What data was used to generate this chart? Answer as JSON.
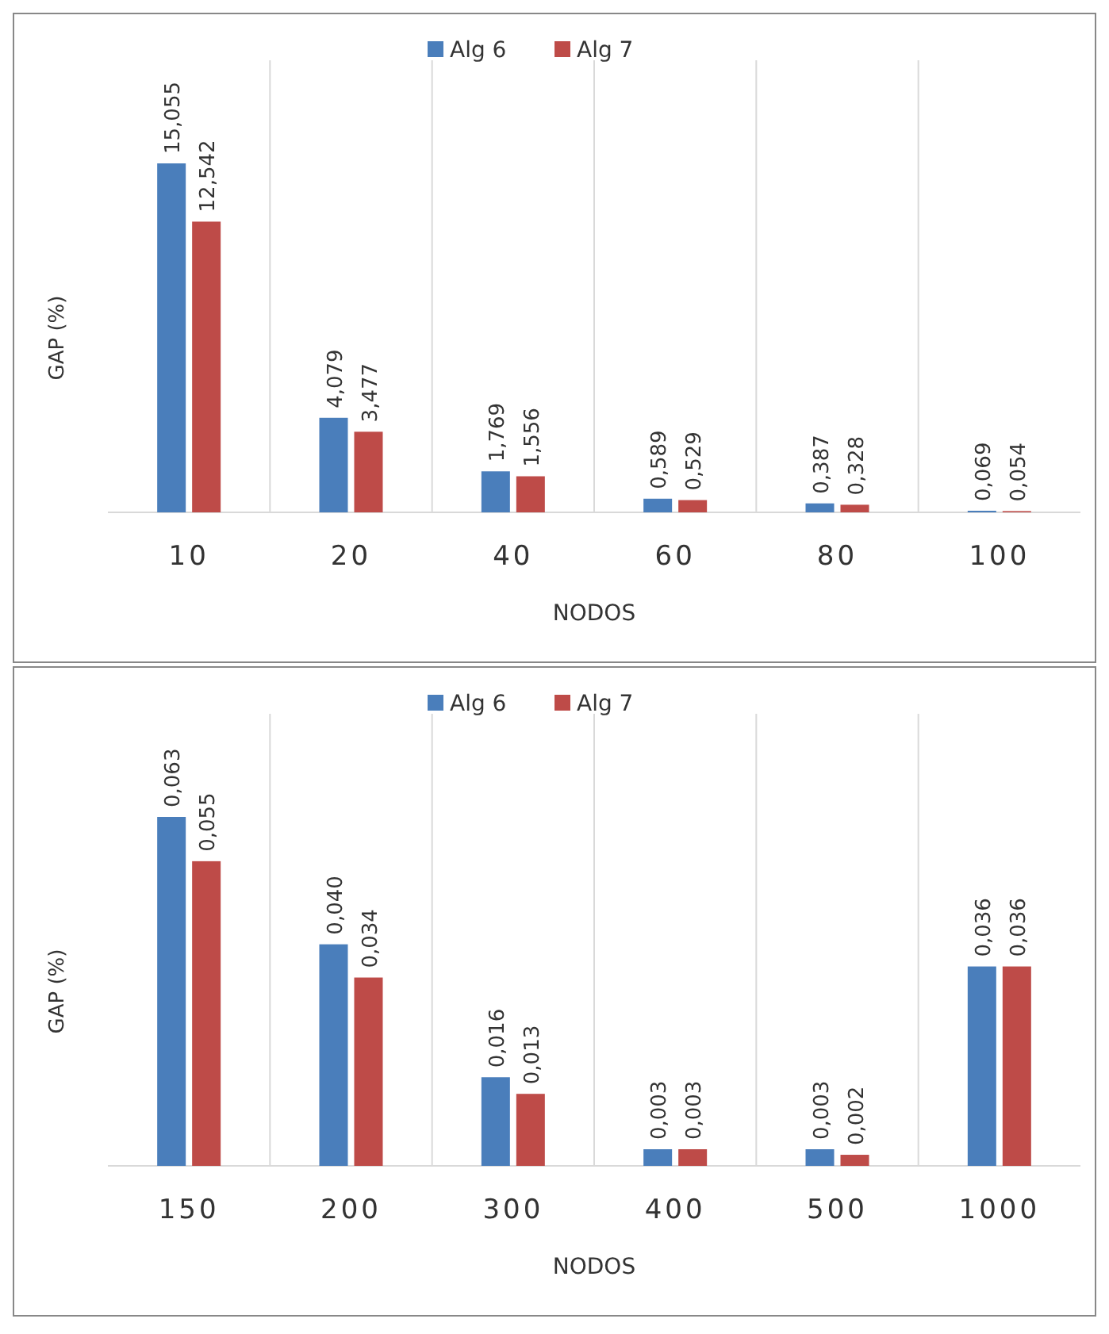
{
  "chart_data": [
    {
      "type": "bar",
      "xlabel": "NODOS",
      "ylabel": "GAP (%)",
      "categories": [
        "10",
        "20",
        "40",
        "60",
        "80",
        "100"
      ],
      "grid": "x",
      "legend": "top",
      "series": [
        {
          "name": "Alg 6",
          "color": "#4a7ebb",
          "values": [
            15.055,
            4.079,
            1.769,
            0.589,
            0.387,
            0.069
          ],
          "value_labels": [
            "15,055",
            "4,079",
            "1,769",
            "0,589",
            "0,387",
            "0,069"
          ]
        },
        {
          "name": "Alg 7",
          "color": "#be4b48",
          "values": [
            12.542,
            3.477,
            1.556,
            0.529,
            0.328,
            0.054
          ],
          "value_labels": [
            "12,542",
            "3,477",
            "1,556",
            "0,529",
            "0,328",
            "0,054"
          ]
        }
      ]
    },
    {
      "type": "bar",
      "xlabel": "NODOS",
      "ylabel": "GAP (%)",
      "categories": [
        "150",
        "200",
        "300",
        "400",
        "500",
        "1000"
      ],
      "grid": "x",
      "legend": "top",
      "series": [
        {
          "name": "Alg 6",
          "color": "#4a7ebb",
          "values": [
            0.063,
            0.04,
            0.016,
            0.003,
            0.003,
            0.036
          ],
          "value_labels": [
            "0,063",
            "0,040",
            "0,016",
            "0,003",
            "0,003",
            "0,036"
          ]
        },
        {
          "name": "Alg 7",
          "color": "#be4b48",
          "values": [
            0.055,
            0.034,
            0.013,
            0.003,
            0.002,
            0.036
          ],
          "value_labels": [
            "0,055",
            "0,034",
            "0,013",
            "0,003",
            "0,002",
            "0,036"
          ]
        }
      ]
    }
  ]
}
